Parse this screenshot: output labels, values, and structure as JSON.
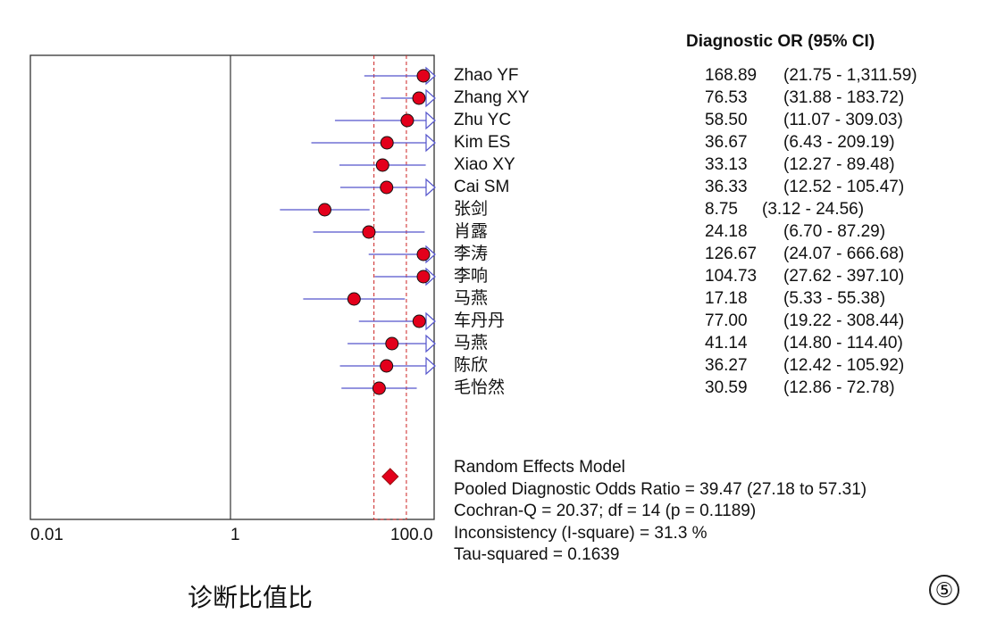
{
  "chart_data": {
    "type": "forest",
    "header": "Diagnostic OR (95% CI)",
    "x_scale": "log",
    "xlim": [
      0.01,
      100.0
    ],
    "x_ticks": [
      {
        "value": 0.01,
        "label": "0.01"
      },
      {
        "value": 1,
        "label": "1"
      },
      {
        "value": 100.0,
        "label": "100.0"
      }
    ],
    "reference_line": 1,
    "pooled_band": [
      27.18,
      57.31
    ],
    "studies": [
      {
        "name": "Zhao YF",
        "or": "168.89",
        "ci": "(21.75 - 1,311.59)",
        "or_value": 168.89,
        "lo": 21.75,
        "hi": 1311.59
      },
      {
        "name": "Zhang XY",
        "or": "76.53",
        "ci": "(31.88 - 183.72)",
        "or_value": 76.53,
        "lo": 31.88,
        "hi": 183.72
      },
      {
        "name": "Zhu YC",
        "or": "58.50",
        "ci": "(11.07 - 309.03)",
        "or_value": 58.5,
        "lo": 11.07,
        "hi": 309.03
      },
      {
        "name": "Kim ES",
        "or": "36.67",
        "ci": "(6.43 - 209.19)",
        "or_value": 36.67,
        "lo": 6.43,
        "hi": 209.19
      },
      {
        "name": "Xiao XY",
        "or": "33.13",
        "ci": "(12.27 - 89.48)",
        "or_value": 33.13,
        "lo": 12.27,
        "hi": 89.48
      },
      {
        "name": "Cai SM",
        "or": "36.33",
        "ci": "(12.52 - 105.47)",
        "or_value": 36.33,
        "lo": 12.52,
        "hi": 105.47
      },
      {
        "name": "张剑",
        "or": "8.75",
        "ci": "(3.12 - 24.56)",
        "or_value": 8.75,
        "lo": 3.12,
        "hi": 24.56
      },
      {
        "name": "肖露",
        "or": "24.18",
        "ci": "(6.70 - 87.29)",
        "or_value": 24.18,
        "lo": 6.7,
        "hi": 87.29
      },
      {
        "name": "李涛",
        "or": "126.67",
        "ci": "(24.07 - 666.68)",
        "or_value": 126.67,
        "lo": 24.07,
        "hi": 666.68
      },
      {
        "name": "李响",
        "or": "104.73",
        "ci": "(27.62 - 397.10)",
        "or_value": 104.73,
        "lo": 27.62,
        "hi": 397.1
      },
      {
        "name": "马燕",
        "or": "17.18",
        "ci": "(5.33 - 55.38)",
        "or_value": 17.18,
        "lo": 5.33,
        "hi": 55.38
      },
      {
        "name": "车丹丹",
        "or": "77.00",
        "ci": "(19.22 - 308.44)",
        "or_value": 77.0,
        "lo": 19.22,
        "hi": 308.44
      },
      {
        "name": "马燕",
        "or": "41.14",
        "ci": "(14.80 - 114.40)",
        "or_value": 41.14,
        "lo": 14.8,
        "hi": 114.4
      },
      {
        "name": "陈欣",
        "or": "36.27",
        "ci": "(12.42 - 105.92)",
        "or_value": 36.27,
        "lo": 12.42,
        "hi": 105.92
      },
      {
        "name": "毛怡然",
        "or": "30.59",
        "ci": "(12.86 - 72.78)",
        "or_value": 30.59,
        "lo": 12.86,
        "hi": 72.78
      }
    ],
    "pooled": {
      "or_value": 39.47,
      "lo": 27.18,
      "hi": 57.31
    },
    "summary_lines": [
      "Random Effects Model",
      "Pooled Diagnostic Odds Ratio = 39.47 (27.18 to 57.31)",
      "Cochran-Q = 20.37; df =  14 (p = 0.1189)",
      "Inconsistency (I-square) = 31.3 %",
      "Tau-squared = 0.1639"
    ],
    "colors": {
      "ci_line": "#5555cc",
      "marker_fill": "#e3001b",
      "band": "#cc2222",
      "axis": "#333333"
    }
  },
  "caption": "诊断比值比",
  "figure_number": "⑤"
}
